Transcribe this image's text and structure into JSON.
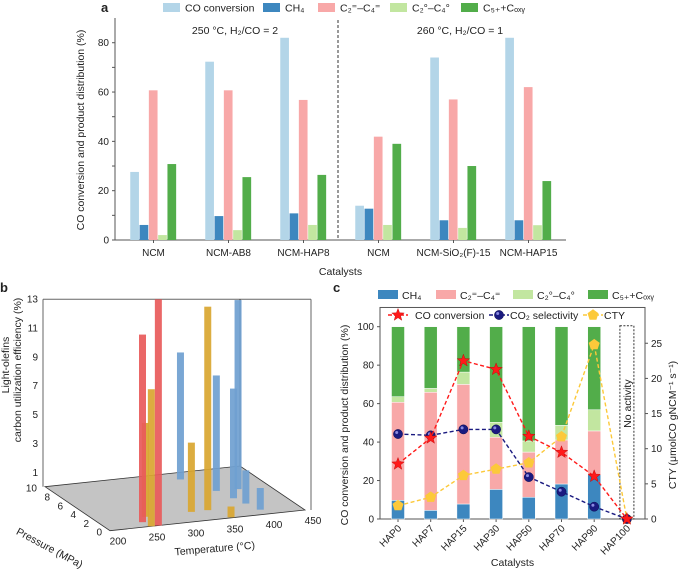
{
  "chart_data": [
    {
      "panel": "a",
      "type": "bar",
      "xlabel": "Catalysts",
      "ylabel": "CO conversion and product distribution (%)",
      "ylim": [
        0,
        90
      ],
      "yticks": [
        0,
        20,
        40,
        60,
        80
      ],
      "legend_position": "top",
      "categories": [
        "NCM",
        "NCM-AB8",
        "NCM-HAP8",
        "NCM",
        "NCM-SiO₂(F)-15",
        "NCM-HAP15"
      ],
      "annotations": [
        "250 °C, H₂/CO = 2",
        "260 °C, H₂/CO = 1"
      ],
      "series": [
        {
          "name": "CO conversion",
          "color": "#b3d5e8",
          "values": [
            27.6,
            72.3,
            82.0,
            13.9,
            74.0,
            82.0
          ]
        },
        {
          "name": "CH₄",
          "color": "#3d87bf",
          "values": [
            6.1,
            9.7,
            10.8,
            12.7,
            8.0,
            8.0
          ]
        },
        {
          "name": "C₂⁼–C₄⁼",
          "color": "#f8a8a8",
          "values": [
            60.7,
            60.7,
            56.8,
            41.9,
            57.0,
            62.0
          ]
        },
        {
          "name": "C₂°–C₄°",
          "color": "#c2e6a0",
          "values": [
            2.0,
            4.0,
            6.1,
            6.1,
            4.9,
            6.0
          ]
        },
        {
          "name": "C₅₊+Cₒₓᵧ",
          "color": "#52ad4a",
          "values": [
            30.8,
            25.5,
            26.4,
            39.0,
            30.0,
            23.9
          ]
        }
      ]
    },
    {
      "panel": "b",
      "type": "bar3d",
      "xlabel": "Temperature (°C)",
      "ylabel": "Pressure (MPa)",
      "zlabel_line1": "Light-olefins",
      "zlabel_line2": "carbon utilization efficiency (%)",
      "xlim": [
        200,
        450
      ],
      "xticks": [
        200,
        250,
        300,
        350,
        400,
        450
      ],
      "ylim": [
        0,
        10
      ],
      "yticks": [
        0,
        2,
        4,
        6,
        8,
        10
      ],
      "zlim": [
        0,
        13
      ],
      "zticks": [
        1,
        3,
        5,
        7,
        9,
        11,
        13
      ],
      "bars": [
        {
          "temperature": 262,
          "pressure": 2.0,
          "value": 6.5,
          "color": "#d9a630"
        },
        {
          "temperature": 250,
          "pressure": 1.0,
          "value": 13.0,
          "color": "#e85a5a"
        },
        {
          "temperature": 253,
          "pressure": 0.0,
          "value": 9.5,
          "color": "#d9a630"
        },
        {
          "temperature": 262,
          "pressure": 0.0,
          "value": 15.7,
          "color": "#e85a5a"
        },
        {
          "temperature": 362,
          "pressure": 8.6,
          "value": 8.8,
          "color": "#6f9fd0"
        },
        {
          "temperature": 410,
          "pressure": 5.5,
          "value": 13.1,
          "color": "#6f9fd0"
        },
        {
          "temperature": 383,
          "pressure": 5.6,
          "value": 8.0,
          "color": "#6f9fd0"
        },
        {
          "temperature": 390,
          "pressure": 3.8,
          "value": 7.6,
          "color": "#6f9fd0"
        },
        {
          "temperature": 395,
          "pressure": 2.5,
          "value": 2.3,
          "color": "#6f9fd0"
        },
        {
          "temperature": 321,
          "pressure": 2.0,
          "value": 4.8,
          "color": "#d9a630"
        },
        {
          "temperature": 342,
          "pressure": 2.0,
          "value": 14.1,
          "color": "#d9a630"
        },
        {
          "temperature": 401,
          "pressure": 1.0,
          "value": 1.5,
          "color": "#6f9fd0"
        },
        {
          "temperature": 356,
          "pressure": 0.1,
          "value": 0.75,
          "color": "#d9a630"
        }
      ]
    },
    {
      "panel": "c",
      "type": "bar+line",
      "xlabel": "Catalysts",
      "ylabel": "CO conversion and product distribution (%)",
      "ylabel_right": "CTY (μmolCO gNCM⁻¹ s⁻¹)",
      "ylim": [
        0,
        110
      ],
      "yticks": [
        0,
        20,
        40,
        60,
        80,
        100
      ],
      "ylim_right": [
        0,
        30
      ],
      "yticks_right": [
        0,
        5,
        10,
        15,
        20,
        25
      ],
      "categories": [
        "HAP0",
        "HAP7",
        "HAP15",
        "HAP30",
        "HAP50",
        "HAP70",
        "HAP90",
        "HAP100"
      ],
      "annotation": "No activity",
      "stacked_series": [
        {
          "name": "CH₄",
          "color": "#3d87bf",
          "values": [
            9.7,
            4.5,
            7.8,
            15.4,
            11.3,
            18.2,
            23.0,
            0
          ]
        },
        {
          "name": "C₂⁼–C₄⁼",
          "color": "#f8a8a8",
          "values": [
            51.0,
            61.4,
            62.2,
            27.1,
            23.5,
            22.9,
            22.8,
            0
          ]
        },
        {
          "name": "C₂°–C₄°",
          "color": "#c2e6a0",
          "values": [
            2.9,
            2.0,
            6.4,
            7.8,
            5.8,
            7.6,
            11.0,
            0
          ]
        },
        {
          "name": "C₅₊+Cₒₓᵧ",
          "color": "#52ad4a",
          "values": [
            36.4,
            32.1,
            23.6,
            49.7,
            59.4,
            51.3,
            43.2,
            0
          ]
        }
      ],
      "line_series": [
        {
          "name": "CO conversion",
          "axis": "left",
          "marker": "star",
          "color": "#ff1a1a",
          "values": [
            28.6,
            42.1,
            82.3,
            77.8,
            43.0,
            34.7,
            22.2,
            0
          ]
        },
        {
          "name": "CO₂ selectivity",
          "axis": "left",
          "marker": "sphere",
          "color": "#1a1a80",
          "values": [
            44.2,
            43.5,
            46.6,
            46.6,
            21.8,
            14.2,
            6.4,
            0
          ]
        },
        {
          "name": "CTY",
          "axis": "right",
          "marker": "pentagon",
          "color": "#fcc93a",
          "values": [
            1.9,
            3.1,
            6.2,
            7.1,
            8.0,
            11.7,
            24.8,
            0
          ]
        }
      ]
    }
  ]
}
